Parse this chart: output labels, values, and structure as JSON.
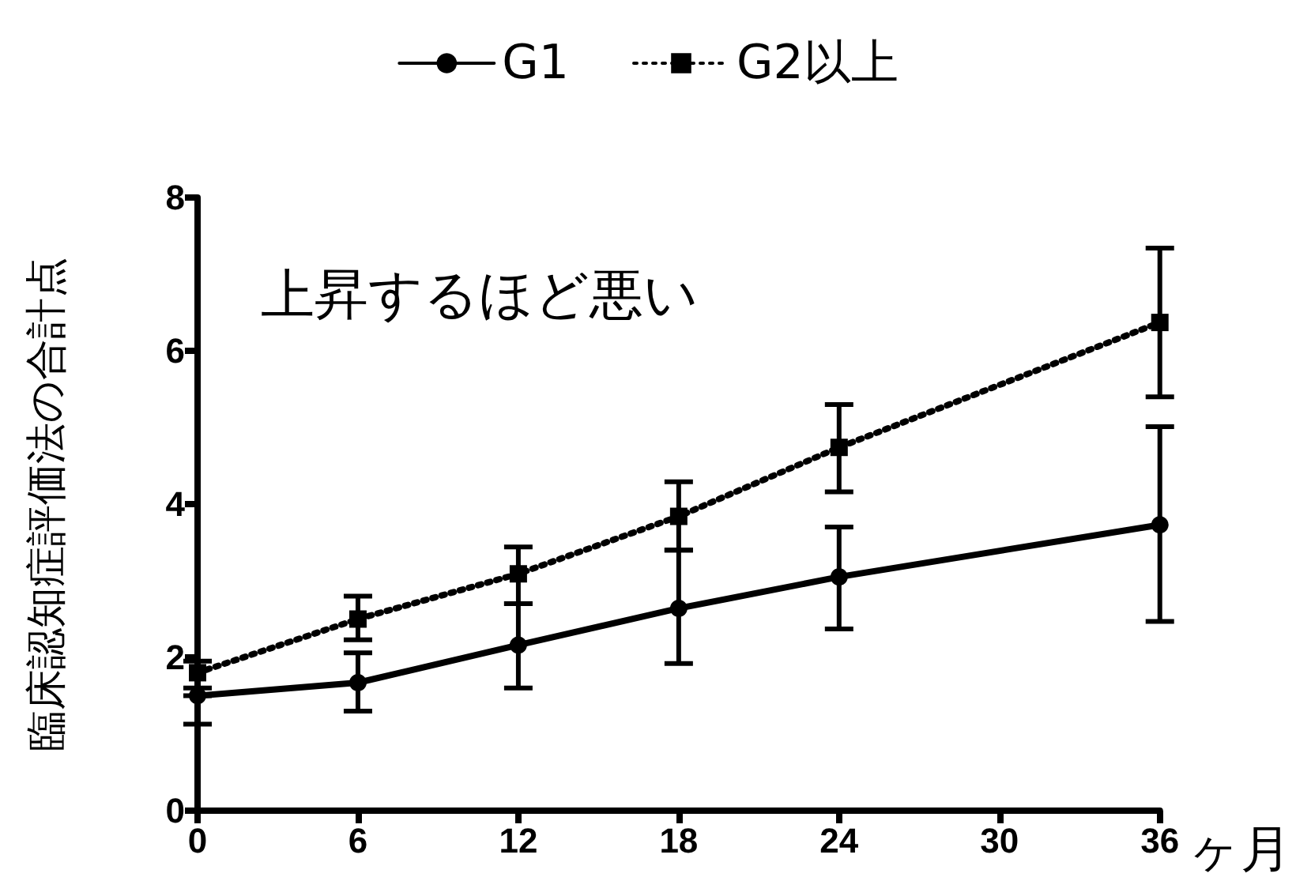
{
  "chart_data": {
    "type": "line",
    "xlabel": "ヶ月",
    "ylabel": "臨床認知症評価法の合計点",
    "annotations": [
      "上昇するほど悪い"
    ],
    "x": [
      0,
      6,
      12,
      18,
      24,
      36
    ],
    "xlim": [
      0,
      36
    ],
    "xticks": [
      0,
      6,
      12,
      18,
      24,
      30,
      36
    ],
    "ylim": [
      0,
      8
    ],
    "yticks": [
      0,
      2,
      4,
      6,
      8
    ],
    "grid": false,
    "legend": "top",
    "series": [
      {
        "name": "G1",
        "color": "#000000",
        "marker": "circle",
        "line_style": "solid",
        "values": [
          1.5,
          1.67,
          2.16,
          2.64,
          3.05,
          3.73
        ],
        "errors": [
          [
            1.13,
            1.5
          ],
          [
            1.3,
            2.06
          ],
          [
            1.6,
            2.7
          ],
          [
            1.92,
            3.4
          ],
          [
            2.37,
            3.7
          ],
          [
            2.47,
            5.01
          ]
        ]
      },
      {
        "name": "G2以上",
        "color": "#000000",
        "marker": "square",
        "line_style": "dotted",
        "values": [
          1.8,
          2.5,
          3.09,
          3.84,
          4.74,
          6.37
        ],
        "errors": [
          [
            1.6,
            1.95
          ],
          [
            2.23,
            2.8
          ],
          [
            2.7,
            3.44
          ],
          [
            3.4,
            4.29
          ],
          [
            4.16,
            5.3
          ],
          [
            5.4,
            7.34
          ]
        ]
      }
    ]
  }
}
